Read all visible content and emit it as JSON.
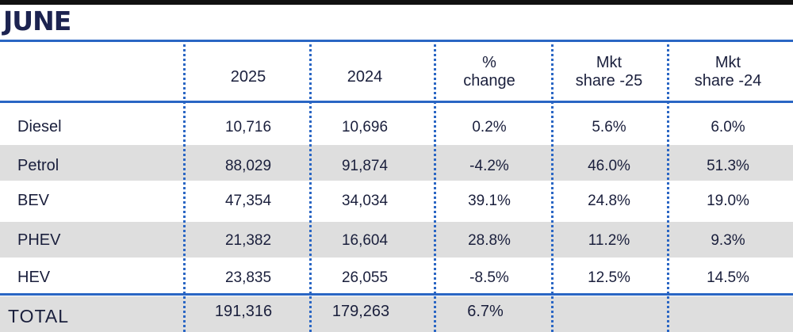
{
  "title": "JUNE",
  "chart_data": {
    "type": "table",
    "title": "JUNE",
    "columns": [
      "2025",
      "2024",
      "% change",
      "Mkt share -25",
      "Mkt share -24"
    ],
    "header_lines": [
      [
        "2025"
      ],
      [
        "2024"
      ],
      [
        "%",
        "change"
      ],
      [
        "Mkt",
        "share -25"
      ],
      [
        "Mkt",
        "share -24"
      ]
    ],
    "rows": [
      {
        "label": "Diesel",
        "values": [
          "10,716",
          "10,696",
          "0.2%",
          "5.6%",
          "6.0%"
        ]
      },
      {
        "label": "Petrol",
        "values": [
          "88,029",
          "91,874",
          "-4.2%",
          "46.0%",
          "51.3%"
        ]
      },
      {
        "label": "BEV",
        "values": [
          "47,354",
          "34,034",
          "39.1%",
          "24.8%",
          "19.0%"
        ]
      },
      {
        "label": "PHEV",
        "values": [
          "21,382",
          "16,604",
          "28.8%",
          "11.2%",
          "9.3%"
        ]
      },
      {
        "label": "HEV",
        "values": [
          "23,835",
          "26,055",
          "-8.5%",
          "12.5%",
          "14.5%"
        ]
      }
    ],
    "total": {
      "label": "TOTAL",
      "values": [
        "191,316",
        "179,263",
        "6.7%",
        "",
        ""
      ]
    }
  },
  "colors": {
    "rule": "#2a66c4",
    "shade": "#dedede",
    "title": "#1c2350"
  }
}
